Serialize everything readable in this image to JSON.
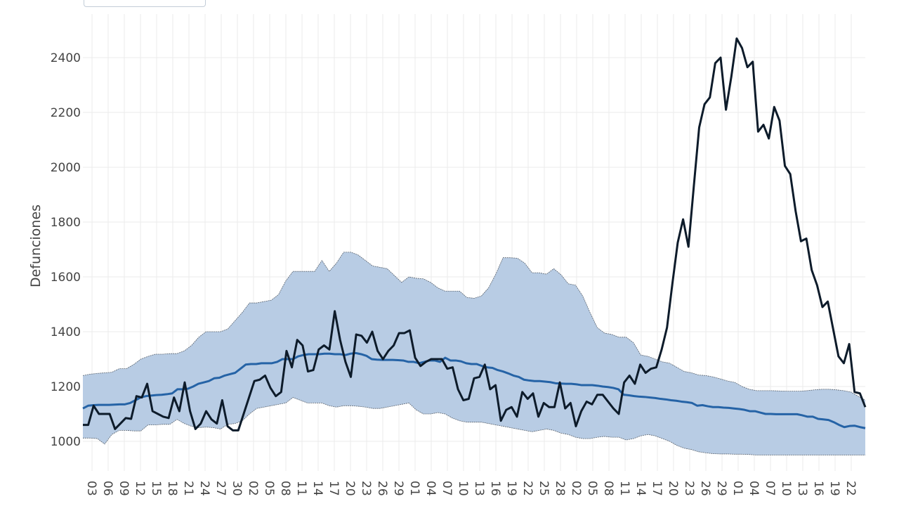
{
  "chart_data": {
    "type": "line",
    "title": "",
    "xlabel": "",
    "ylabel": "Defunciones",
    "ylim": [
      870,
      2550
    ],
    "yticks": [
      1000,
      1200,
      1400,
      1600,
      1800,
      2000,
      2200,
      2400
    ],
    "grid": true,
    "legend": "top-left",
    "colors": {
      "observed": "#0d1b2a",
      "expected": "#2563a6",
      "band_fill": "#b8cce4",
      "band_edge": "#5a6470",
      "grid": "#ebebeb"
    },
    "x_tick_labels": [
      "03",
      "06",
      "09",
      "12",
      "15",
      "18",
      "21",
      "24",
      "27",
      "30",
      "02",
      "05",
      "08",
      "11",
      "14",
      "17",
      "20",
      "23",
      "26",
      "29",
      "01",
      "04",
      "07",
      "10",
      "13",
      "16",
      "19",
      "22",
      "25",
      "28",
      "02",
      "05",
      "08",
      "11",
      "14",
      "17",
      "20",
      "23",
      "26",
      "29",
      "01",
      "04",
      "07",
      "10",
      "13",
      "16",
      "19",
      "22"
    ],
    "series": [
      {
        "role": "observed",
        "values": [
          1060,
          1060,
          1130,
          1100,
          1100,
          1100,
          1045,
          1065,
          1085,
          1082,
          1165,
          1160,
          1210,
          1110,
          1100,
          1090,
          1085,
          1160,
          1110,
          1215,
          1110,
          1045,
          1065,
          1110,
          1080,
          1065,
          1150,
          1055,
          1040,
          1040,
          1100,
          1160,
          1220,
          1225,
          1240,
          1195,
          1165,
          1180,
          1330,
          1270,
          1370,
          1350,
          1255,
          1260,
          1335,
          1350,
          1335,
          1475,
          1370,
          1290,
          1235,
          1390,
          1385,
          1360,
          1400,
          1330,
          1300,
          1330,
          1350,
          1395,
          1395,
          1405,
          1305,
          1275,
          1290,
          1300,
          1300,
          1300,
          1265,
          1270,
          1190,
          1150,
          1155,
          1230,
          1235,
          1280,
          1190,
          1205,
          1075,
          1115,
          1125,
          1090,
          1180,
          1155,
          1175,
          1090,
          1140,
          1125,
          1125,
          1215,
          1120,
          1140,
          1055,
          1110,
          1145,
          1135,
          1170,
          1170,
          1145,
          1120,
          1100,
          1215,
          1240,
          1210,
          1280,
          1250,
          1265,
          1270,
          1335,
          1415,
          1575,
          1725,
          1810,
          1710,
          1930,
          2145,
          2230,
          2255,
          2380,
          2400,
          2210,
          2330,
          2470,
          2435,
          2365,
          2385,
          2130,
          2155,
          2105,
          2220,
          2170,
          2005,
          1975,
          1840,
          1730,
          1740,
          1625,
          1570,
          1490,
          1510,
          1410,
          1310,
          1285,
          1355,
          1180,
          1175,
          1125
        ]
      },
      {
        "role": "expected",
        "values": [
          1120,
          1130,
          1132,
          1133,
          1133,
          1133,
          1134,
          1135,
          1135,
          1140,
          1150,
          1160,
          1165,
          1167,
          1169,
          1170,
          1172,
          1175,
          1190,
          1190,
          1192,
          1200,
          1210,
          1215,
          1220,
          1230,
          1232,
          1240,
          1245,
          1250,
          1265,
          1280,
          1282,
          1282,
          1285,
          1285,
          1285,
          1290,
          1300,
          1300,
          1300,
          1310,
          1315,
          1318,
          1318,
          1318,
          1320,
          1320,
          1318,
          1318,
          1315,
          1320,
          1322,
          1318,
          1312,
          1300,
          1298,
          1297,
          1297,
          1297,
          1296,
          1295,
          1290,
          1290,
          1285,
          1290,
          1295,
          1295,
          1290,
          1305,
          1295,
          1295,
          1292,
          1285,
          1282,
          1282,
          1275,
          1270,
          1268,
          1260,
          1255,
          1248,
          1240,
          1235,
          1225,
          1222,
          1220,
          1220,
          1218,
          1216,
          1212,
          1211,
          1210,
          1210,
          1208,
          1205,
          1205,
          1205,
          1203,
          1200,
          1198,
          1195,
          1190,
          1170,
          1168,
          1165,
          1163,
          1162,
          1160,
          1158,
          1155,
          1153,
          1150,
          1148,
          1145,
          1143,
          1140,
          1130,
          1132,
          1128,
          1125,
          1125,
          1123,
          1122,
          1120,
          1118,
          1115,
          1110,
          1110,
          1105,
          1100,
          1100,
          1099,
          1099,
          1099,
          1099,
          1099,
          1095,
          1090,
          1090,
          1082,
          1080,
          1078,
          1070,
          1060,
          1052,
          1056,
          1057,
          1052,
          1048
        ]
      },
      {
        "role": "band_upper",
        "values": [
          1240,
          1245,
          1248,
          1250,
          1252,
          1265,
          1265,
          1280,
          1300,
          1310,
          1318,
          1318,
          1320,
          1320,
          1330,
          1350,
          1380,
          1400,
          1400,
          1400,
          1410,
          1440,
          1470,
          1505,
          1505,
          1510,
          1515,
          1535,
          1585,
          1620,
          1620,
          1620,
          1620,
          1660,
          1620,
          1650,
          1690,
          1690,
          1680,
          1660,
          1640,
          1635,
          1630,
          1605,
          1580,
          1600,
          1595,
          1593,
          1580,
          1560,
          1548,
          1548,
          1548,
          1525,
          1522,
          1530,
          1560,
          1610,
          1670,
          1670,
          1668,
          1650,
          1615,
          1615,
          1610,
          1630,
          1608,
          1575,
          1570,
          1530,
          1470,
          1415,
          1395,
          1390,
          1380,
          1380,
          1360,
          1315,
          1310,
          1300,
          1290,
          1285,
          1270,
          1255,
          1250,
          1242,
          1240,
          1235,
          1228,
          1220,
          1215,
          1200,
          1190,
          1185,
          1185,
          1185,
          1184,
          1183,
          1183,
          1183,
          1185,
          1188,
          1190,
          1190,
          1188,
          1185,
          1180,
          1165,
          1150
        ]
      },
      {
        "role": "band_lower",
        "values": [
          1012,
          1012,
          1010,
          990,
          1025,
          1040,
          1040,
          1038,
          1038,
          1060,
          1060,
          1062,
          1062,
          1080,
          1065,
          1055,
          1050,
          1052,
          1050,
          1045,
          1062,
          1065,
          1075,
          1100,
          1120,
          1125,
          1130,
          1135,
          1140,
          1160,
          1150,
          1140,
          1140,
          1140,
          1130,
          1125,
          1130,
          1130,
          1128,
          1125,
          1120,
          1120,
          1125,
          1130,
          1135,
          1140,
          1115,
          1100,
          1100,
          1105,
          1100,
          1085,
          1075,
          1070,
          1070,
          1070,
          1065,
          1060,
          1055,
          1050,
          1045,
          1040,
          1035,
          1040,
          1045,
          1040,
          1030,
          1025,
          1015,
          1010,
          1010,
          1015,
          1018,
          1015,
          1015,
          1005,
          1010,
          1020,
          1025,
          1020,
          1010,
          1000,
          985,
          975,
          970,
          962,
          958,
          955,
          954,
          954,
          953,
          953,
          952,
          950,
          950,
          950,
          950,
          950,
          950,
          950,
          950,
          950,
          950,
          950,
          950,
          950,
          950,
          950,
          950
        ]
      }
    ]
  }
}
